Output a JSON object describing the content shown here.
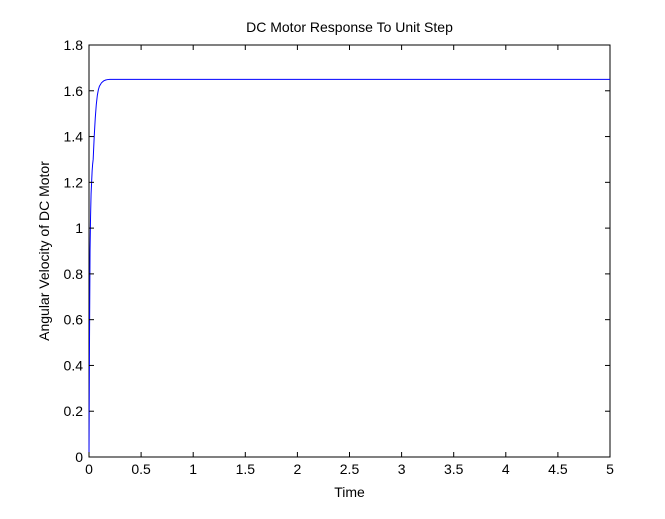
{
  "chart_data": {
    "type": "line",
    "title": "DC Motor Response To Unit Step",
    "xlabel": "Time",
    "ylabel": "Angular Velocity of DC Motor",
    "xlim": [
      0,
      5
    ],
    "ylim": [
      0,
      1.8
    ],
    "xticks": [
      0,
      0.5,
      1,
      1.5,
      2,
      2.5,
      3,
      3.5,
      4,
      4.5,
      5
    ],
    "xtick_labels": [
      "0",
      "0.5",
      "1",
      "1.5",
      "2",
      "2.5",
      "3",
      "3.5",
      "4",
      "4.5",
      "5"
    ],
    "yticks": [
      0,
      0.2,
      0.4,
      0.6,
      0.8,
      1,
      1.2,
      1.4,
      1.6,
      1.8
    ],
    "ytick_labels": [
      "0",
      "0.2",
      "0.4",
      "0.6",
      "0.8",
      "1",
      "1.2",
      "1.4",
      "1.6",
      "1.8"
    ],
    "grid": false,
    "legend": "none",
    "series": [
      {
        "color": "#0000ff",
        "x": [
          0,
          0.005,
          0.01,
          0.015,
          0.02,
          0.025,
          0.03,
          0.035,
          0.04,
          0.05,
          0.06,
          0.07,
          0.08,
          0.09,
          0.1,
          0.12,
          0.14,
          0.16,
          0.18,
          0.2,
          0.25,
          0.3,
          0.5,
          1,
          2,
          3,
          4,
          5
        ],
        "y": [
          0,
          0.52,
          0.9,
          1.05,
          1.15,
          1.2,
          1.25,
          1.28,
          1.3,
          1.4,
          1.48,
          1.54,
          1.58,
          1.605,
          1.62,
          1.635,
          1.643,
          1.647,
          1.649,
          1.65,
          1.65,
          1.65,
          1.65,
          1.65,
          1.65,
          1.65,
          1.65,
          1.65
        ]
      }
    ]
  }
}
